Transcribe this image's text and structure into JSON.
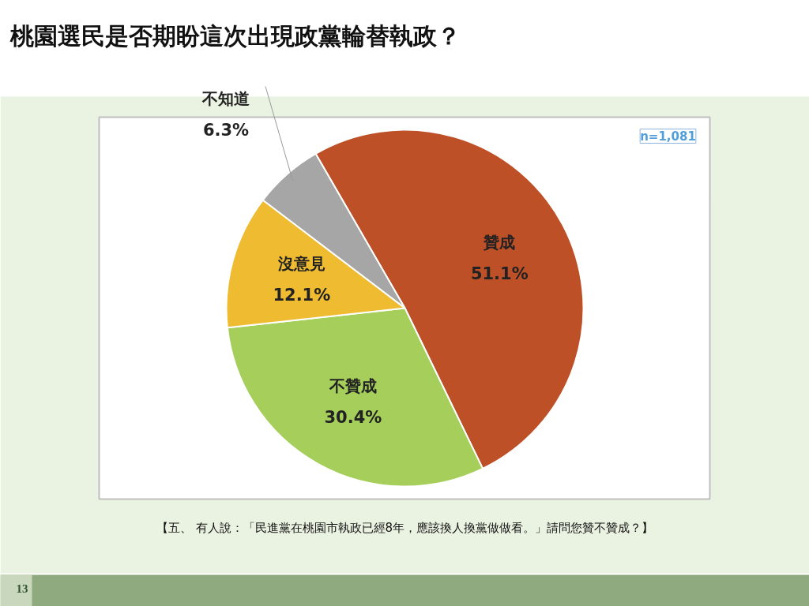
{
  "chart_data": {
    "type": "pie",
    "title": "桃園選民是否期盼這次出現政黨輪替執政？",
    "categories": [
      "贊成",
      "不贊成",
      "沒意見",
      "不知道"
    ],
    "values": [
      51.1,
      30.4,
      12.1,
      6.3
    ],
    "colors": [
      "#be5027",
      "#a5cf5a",
      "#efbb31",
      "#a6a6a6"
    ],
    "value_labels": [
      "51.1%",
      "30.4%",
      "12.1%",
      "6.3%"
    ],
    "annotations": [
      "n=1,081",
      "【五、 有人說：「民進黨在桃園市執政已經8年，應該換人換黨做做看。」請問您贊不贊成？】",
      "13"
    ]
  }
}
